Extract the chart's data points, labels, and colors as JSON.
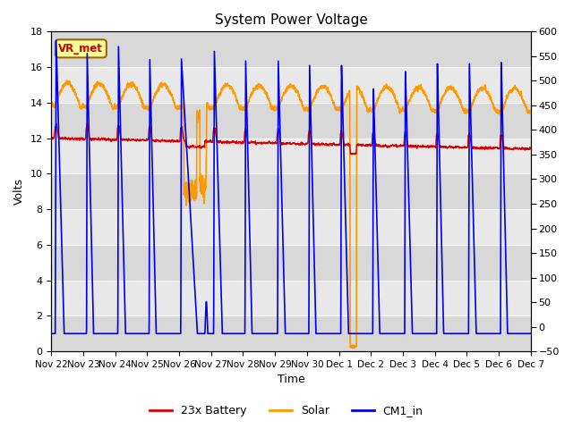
{
  "title": "System Power Voltage",
  "xlabel": "Time",
  "ylabel_left": "Volts",
  "ylim_left": [
    0,
    18
  ],
  "ylim_right": [
    -50,
    600
  ],
  "yticks_left": [
    0,
    2,
    4,
    6,
    8,
    10,
    12,
    14,
    16,
    18
  ],
  "yticks_right": [
    -50,
    0,
    50,
    100,
    150,
    200,
    250,
    300,
    350,
    400,
    450,
    500,
    550,
    600
  ],
  "bg_color": "#ffffff",
  "plot_bg_color": "#e0e0e0",
  "grid_color": "#ffffff",
  "annotation_text": "VR_met",
  "annotation_bg": "#ffff99",
  "annotation_border": "#996600",
  "legend_entries": [
    "23x Battery",
    "Solar",
    "CM1_in"
  ],
  "legend_colors": [
    "#dd0000",
    "#ff9900",
    "#0000ee"
  ],
  "xtick_labels": [
    "Nov 22",
    "Nov 23",
    "Nov 24",
    "Nov 25",
    "Nov 26",
    "Nov 27",
    "Nov 28",
    "Nov 29",
    "Nov 30",
    "Dec 1",
    "Dec 2",
    "Dec 3",
    "Dec 4",
    "Dec 5",
    "Dec 6",
    "Dec 7"
  ],
  "num_days": 15
}
